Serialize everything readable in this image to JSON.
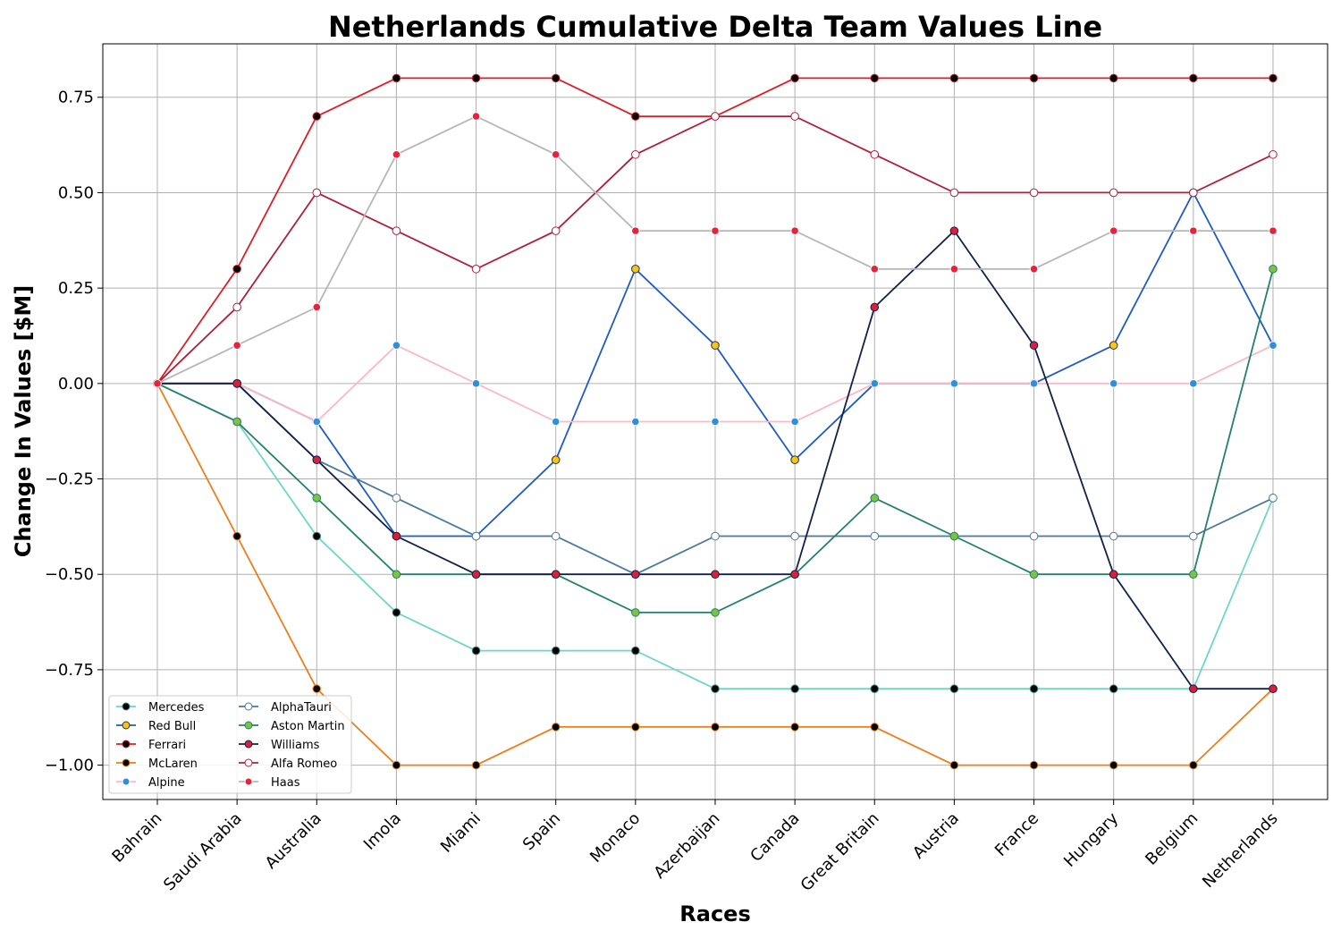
{
  "chart_data": {
    "type": "line",
    "title": "Netherlands Cumulative Delta Team Values Line",
    "xlabel": "Races",
    "ylabel": "Change In Values [$M]",
    "ylim": [
      -1.09,
      0.89
    ],
    "yticks": [
      "0.75",
      "0.50",
      "0.25",
      "0.00",
      "−0.25",
      "−0.50",
      "−0.75",
      "−1.00"
    ],
    "ytick_values": [
      0.75,
      0.5,
      0.25,
      0.0,
      -0.25,
      -0.5,
      -0.75,
      -1.0
    ],
    "grid": true,
    "legend_position": "lower-left",
    "categories": [
      "Bahrain",
      "Saudi Arabia",
      "Australia",
      "Imola",
      "Miami",
      "Spain",
      "Monaco",
      "Azerbaijan",
      "Canada",
      "Great Britain",
      "Austria",
      "France",
      "Hungary",
      "Belgium",
      "Netherlands"
    ],
    "series": [
      {
        "name": "Mercedes",
        "line": "#6ed7c2",
        "marker": "#000000",
        "edge": "#3a8a7a",
        "values": [
          0,
          -0.1,
          -0.4,
          -0.6,
          -0.7,
          -0.7,
          -0.7,
          -0.8,
          -0.8,
          -0.8,
          -0.8,
          -0.8,
          -0.8,
          -0.8,
          -0.3
        ]
      },
      {
        "name": "Red Bull",
        "line": "#1e5bc6",
        "marker": "#f5c518",
        "edge": "#333333",
        "values": [
          0,
          0,
          -0.1,
          -0.4,
          -0.4,
          -0.2,
          0.3,
          0.1,
          -0.2,
          0,
          0,
          0,
          0.1,
          0.5,
          0.1
        ]
      },
      {
        "name": "Ferrari",
        "line": "#dc1e28",
        "marker": "#000000",
        "edge": "#dc1e28",
        "values": [
          0,
          0.3,
          0.7,
          0.8,
          0.8,
          0.8,
          0.7,
          0.7,
          0.8,
          0.8,
          0.8,
          0.8,
          0.8,
          0.8,
          0.8
        ]
      },
      {
        "name": "McLaren",
        "line": "#f07d1a",
        "marker": "#000000",
        "edge": "#f07d1a",
        "values": [
          0,
          -0.4,
          -0.8,
          -1.0,
          -1.0,
          -0.9,
          -0.9,
          -0.9,
          -0.9,
          -0.9,
          -1.0,
          -1.0,
          -1.0,
          -1.0,
          -0.8
        ]
      },
      {
        "name": "Alpine",
        "line": "#ffb6c8",
        "marker": "#2f8fd8",
        "edge": "#ffffff",
        "values": [
          0,
          0,
          -0.1,
          0.1,
          0,
          -0.1,
          -0.1,
          -0.1,
          -0.1,
          0,
          0,
          0,
          0,
          0,
          0.1
        ]
      },
      {
        "name": "AlphaTauri",
        "line": "#4a7a9c",
        "marker": "#ffffff",
        "edge": "#4a7a9c",
        "values": [
          0,
          0,
          -0.2,
          -0.3,
          -0.4,
          -0.4,
          -0.5,
          -0.4,
          -0.4,
          -0.4,
          -0.4,
          -0.4,
          -0.4,
          -0.4,
          -0.3
        ]
      },
      {
        "name": "Aston Martin",
        "line": "#23806a",
        "marker": "#7dc242",
        "edge": "#23806a",
        "values": [
          0,
          -0.1,
          -0.3,
          -0.5,
          -0.5,
          -0.5,
          -0.6,
          -0.6,
          -0.5,
          -0.3,
          -0.4,
          -0.5,
          -0.5,
          -0.5,
          0.3
        ]
      },
      {
        "name": "Williams",
        "line": "#13204a",
        "marker": "#dc1e3c",
        "edge": "#13204a",
        "values": [
          0,
          0,
          -0.2,
          -0.4,
          -0.5,
          -0.5,
          -0.5,
          -0.5,
          -0.5,
          0.2,
          0.4,
          0.1,
          -0.5,
          -0.8,
          -0.8
        ]
      },
      {
        "name": "Alfa Romeo",
        "line": "#b01e3c",
        "marker": "#ffffff",
        "edge": "#b01e3c",
        "values": [
          0,
          0.2,
          0.5,
          0.4,
          0.3,
          0.4,
          0.6,
          0.7,
          0.7,
          0.6,
          0.5,
          0.5,
          0.5,
          0.5,
          0.6
        ]
      },
      {
        "name": "Haas",
        "line": "#b6b6b6",
        "marker": "#e8213c",
        "edge": "#ffffff",
        "values": [
          0,
          0.1,
          0.2,
          0.6,
          0.7,
          0.6,
          0.4,
          0.4,
          0.4,
          0.3,
          0.3,
          0.3,
          0.4,
          0.4,
          0.4
        ]
      }
    ]
  }
}
